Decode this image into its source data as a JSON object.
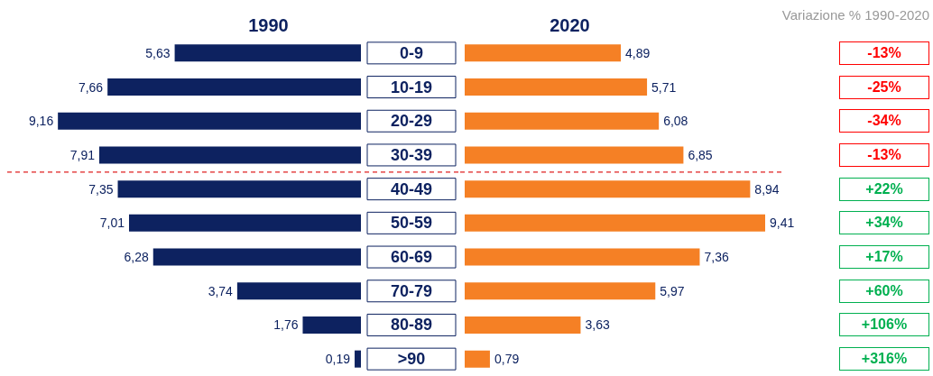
{
  "chart_data": [
    {
      "type": "bar",
      "orientation": "horizontal",
      "title": "1990",
      "categories": [
        "0-9",
        "10-19",
        "20-29",
        "30-39",
        "40-49",
        "50-59",
        "60-69",
        "70-79",
        "80-89",
        ">90"
      ],
      "series": [
        {
          "color": "#0d2260",
          "values": [
            5.63,
            7.66,
            9.16,
            7.91,
            7.35,
            7.01,
            6.28,
            3.74,
            1.76,
            0.19
          ],
          "value_labels": [
            "5,63",
            "7,66",
            "9,16",
            "7,91",
            "7,35",
            "7,01",
            "6,28",
            "3,74",
            "1,76",
            "0,19"
          ]
        }
      ],
      "ref_lines": [
        {
          "axis": "y",
          "value": "40-49",
          "color": "#e02020",
          "line_style": "dashed"
        }
      ]
    },
    {
      "type": "bar",
      "orientation": "horizontal",
      "title": "2020",
      "tick_labels": false,
      "categories": [
        "0-9",
        "10-19",
        "20-29",
        "30-39",
        "40-49",
        "50-59",
        "60-69",
        "70-79",
        "80-89",
        ">90"
      ],
      "series": [
        {
          "color": "#f58025",
          "values": [
            4.89,
            5.71,
            6.08,
            6.85,
            8.94,
            9.41,
            7.36,
            5.97,
            3.63,
            0.79
          ],
          "value_labels": [
            "4,89",
            "5,71",
            "6,08",
            "6,85",
            "8,94",
            "9,41",
            "7,36",
            "5,97",
            "3,63",
            "0,79"
          ]
        }
      ],
      "ref_lines": [
        {
          "axis": "y",
          "value": "40-49",
          "color": "#e02020",
          "line_style": "dashed"
        }
      ],
      "annotations": [
        "Variazione % 1990-2020",
        "-13%",
        "-25%",
        "-34%",
        "-13%",
        "+22%",
        "+34%",
        "+17%",
        "+60%",
        "+106%",
        "+316%"
      ]
    }
  ]
}
